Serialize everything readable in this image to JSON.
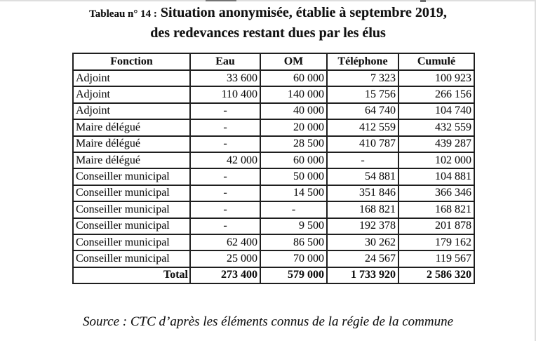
{
  "title": {
    "label": "Tableau n° 14 :",
    "line1": " Situation anonymisée, établie à septembre 2019,",
    "line2": "des redevances restant dues par les élus"
  },
  "table": {
    "columns": [
      "Fonction",
      "Eau",
      "OM",
      "Téléphone",
      "Cumulé"
    ],
    "rows": [
      [
        "Adjoint",
        "33 600",
        "60 000",
        "7 323",
        "100 923"
      ],
      [
        "Adjoint",
        "110 400",
        "140 000",
        "15 756",
        "266 156"
      ],
      [
        "Adjoint",
        "-",
        "40 000",
        "64 740",
        "104 740"
      ],
      [
        "Maire délégué",
        "-",
        "20 000",
        "412 559",
        "432 559"
      ],
      [
        "Maire délégué",
        "-",
        "28 500",
        "410 787",
        "439 287"
      ],
      [
        "Maire délégué",
        "42 000",
        "60 000",
        "-",
        "102 000"
      ],
      [
        "Conseiller municipal",
        "-",
        "50 000",
        "54 881",
        "104 881"
      ],
      [
        "Conseiller municipal",
        "-",
        "14 500",
        "351 846",
        "366 346"
      ],
      [
        "Conseiller municipal",
        "-",
        "-",
        "168 821",
        "168 821"
      ],
      [
        "Conseiller municipal",
        "-",
        "9 500",
        "192 378",
        "201 878"
      ],
      [
        "Conseiller municipal",
        "62 400",
        "86 500",
        "30 262",
        "179 162"
      ],
      [
        "Conseiller municipal",
        "25 000",
        "70 000",
        "24 567",
        "119 567"
      ]
    ],
    "total_row": [
      "Total",
      "273 400",
      "579 000",
      "1 733 920",
      "2 586 320"
    ]
  },
  "source": "Source : CTC d’après les éléments connus de la régie de la commune",
  "colors": {
    "text": "#121212",
    "table_border": "#1f1f1f",
    "scan_edge": "#dedede",
    "background": "#ffffff"
  }
}
